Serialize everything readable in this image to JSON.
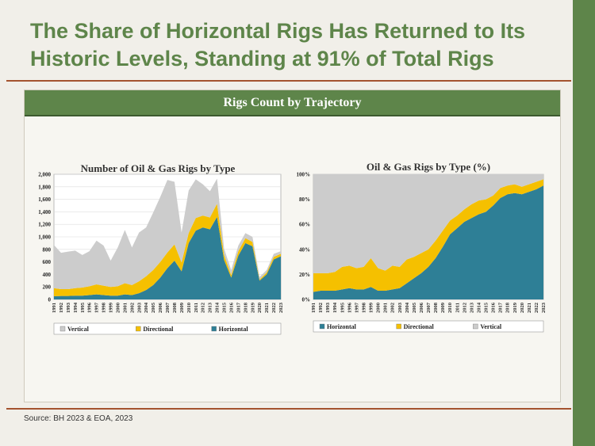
{
  "page": {
    "title_line1": "The Share of Horizontal Rigs Has Returned to Its",
    "title_line2": "Historic Levels, Standing at 91% of Total Rigs",
    "banner": "Rigs Count by Trajectory",
    "source": "Source: BH 2023 & EOA, 2023"
  },
  "colors": {
    "horizontal": "#2e7f96",
    "directional": "#f5c000",
    "vertical": "#cccccc",
    "accent": "#5e854a",
    "rule": "#a4532f"
  },
  "chart_data": [
    {
      "type": "area",
      "stacked": true,
      "title": "Number of Oil & Gas Rigs by Type",
      "x": [
        "1991",
        "1992",
        "1993",
        "1994",
        "1995",
        "1996",
        "1997",
        "1998",
        "1999",
        "2000",
        "2001",
        "2002",
        "2003",
        "2004",
        "2005",
        "2006",
        "2007",
        "2008",
        "2009",
        "2010",
        "2011",
        "2012",
        "2013",
        "2014",
        "2015",
        "2016",
        "2017",
        "2018",
        "2019",
        "2020",
        "2021",
        "2022",
        "2023"
      ],
      "yticks": [
        "0",
        "200",
        "400",
        "600",
        "800",
        "1,000",
        "1,200",
        "1,400",
        "1,600",
        "1,800",
        "2,000"
      ],
      "ylim": [
        0,
        2000
      ],
      "legend_position": "bottom",
      "grid": true,
      "series": [
        {
          "name": "Horizontal",
          "values": [
            50,
            55,
            55,
            60,
            60,
            70,
            80,
            70,
            60,
            60,
            80,
            70,
            100,
            150,
            230,
            350,
            500,
            620,
            450,
            900,
            1100,
            1150,
            1120,
            1320,
            630,
            350,
            700,
            900,
            850,
            300,
            400,
            640,
            690
          ]
        },
        {
          "name": "Directional",
          "values": [
            130,
            110,
            110,
            120,
            130,
            140,
            160,
            150,
            140,
            150,
            180,
            160,
            190,
            220,
            240,
            250,
            250,
            260,
            140,
            160,
            200,
            190,
            190,
            210,
            80,
            40,
            70,
            80,
            70,
            20,
            30,
            40,
            40
          ]
        },
        {
          "name": "Vertical",
          "values": [
            690,
            580,
            600,
            600,
            520,
            560,
            700,
            640,
            420,
            620,
            850,
            600,
            780,
            780,
            920,
            1040,
            1160,
            1000,
            480,
            680,
            620,
            500,
            420,
            400,
            100,
            80,
            90,
            80,
            80,
            40,
            40,
            50,
            40
          ]
        }
      ]
    },
    {
      "type": "area",
      "stacked": true,
      "title": "Oil & Gas Rigs by Type (%)",
      "x": [
        "1991",
        "1992",
        "1993",
        "1994",
        "1995",
        "1996",
        "1997",
        "1998",
        "1999",
        "2000",
        "2001",
        "2002",
        "2003",
        "2004",
        "2005",
        "2006",
        "2007",
        "2008",
        "2009",
        "2010",
        "2011",
        "2012",
        "2013",
        "2014",
        "2015",
        "2016",
        "2017",
        "2018",
        "2019",
        "2020",
        "2021",
        "2022",
        "2023"
      ],
      "yticks": [
        "0%",
        "20%",
        "40%",
        "60%",
        "80%",
        "100%"
      ],
      "ylim": [
        0,
        100
      ],
      "legend_position": "bottom",
      "grid": true,
      "series": [
        {
          "name": "Horizontal",
          "values": [
            6,
            7,
            7,
            7,
            8,
            9,
            8,
            8,
            10,
            7,
            7,
            8,
            9,
            13,
            17,
            21,
            26,
            33,
            42,
            52,
            57,
            62,
            65,
            68,
            70,
            75,
            81,
            84,
            85,
            84,
            86,
            88,
            91
          ]
        },
        {
          "name": "Directional",
          "values": [
            15,
            14,
            14,
            15,
            18,
            18,
            17,
            18,
            23,
            18,
            16,
            19,
            17,
            19,
            17,
            16,
            14,
            14,
            13,
            11,
            10,
            10,
            11,
            11,
            10,
            8,
            8,
            7,
            7,
            6,
            6,
            6,
            5
          ]
        },
        {
          "name": "Vertical",
          "values": [
            79,
            79,
            79,
            78,
            74,
            73,
            75,
            74,
            67,
            75,
            77,
            73,
            74,
            68,
            66,
            63,
            60,
            53,
            45,
            37,
            33,
            28,
            24,
            21,
            20,
            17,
            11,
            9,
            8,
            10,
            8,
            6,
            4
          ]
        }
      ]
    }
  ]
}
